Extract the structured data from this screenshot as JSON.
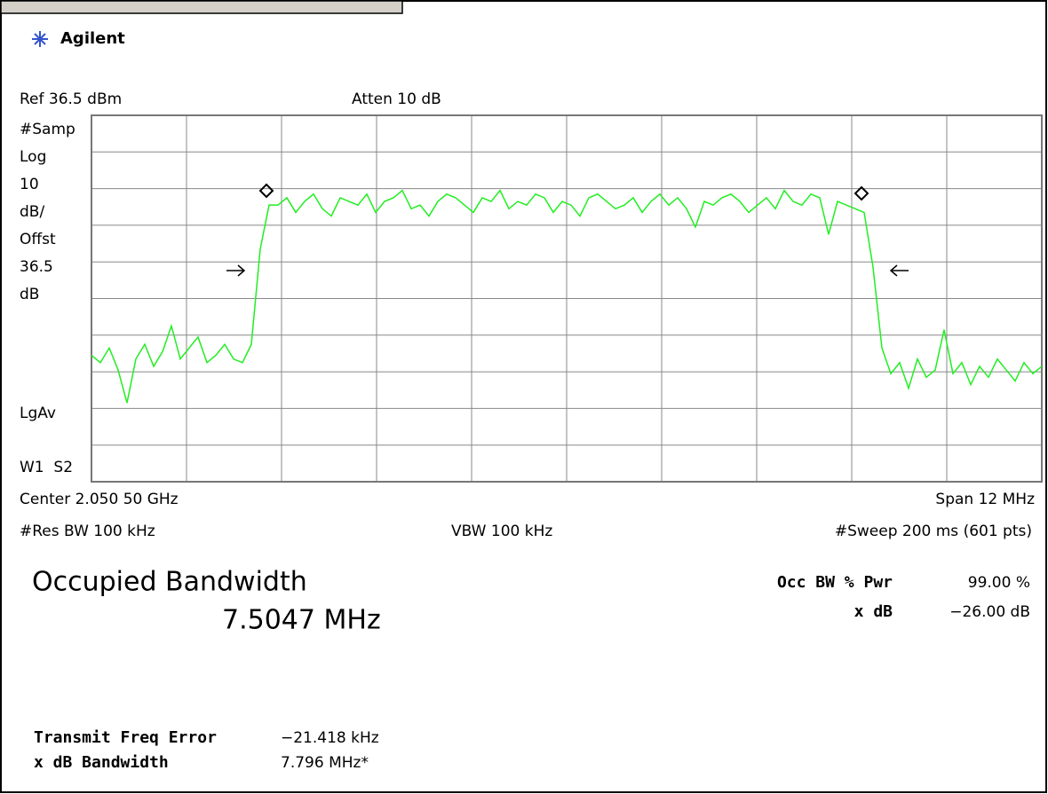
{
  "header": {
    "brand": "Agilent"
  },
  "settings": {
    "ref": "Ref 36.5 dBm",
    "atten": "Atten 10 dB",
    "side_labels": [
      "#Samp",
      "Log",
      "10",
      "dB/",
      "Offst",
      "36.5",
      "dB"
    ],
    "avg": "LgAv",
    "window": "W1  S2",
    "center": "Center 2.050 50 GHz",
    "span": "Span 12 MHz",
    "res_bw": "#Res BW 100 kHz",
    "vbw": "VBW 100 kHz",
    "sweep": "#Sweep 200 ms (601 pts)"
  },
  "trace": {
    "color": "#22ee22",
    "ylim": [
      -63.5,
      36.5
    ],
    "values": [
      -29,
      -31,
      -27,
      -33,
      -42,
      -30,
      -26,
      -32,
      -28,
      -21,
      -30,
      -27,
      -24,
      -31,
      -29,
      -26,
      -30,
      -31,
      -26,
      0,
      12,
      12,
      14,
      10,
      13,
      15,
      11,
      9,
      14,
      13,
      12,
      15,
      10,
      13,
      14,
      16,
      11,
      12,
      9,
      13,
      15,
      14,
      12,
      10,
      14,
      13,
      16,
      11,
      13,
      12,
      15,
      14,
      10,
      13,
      12,
      9,
      14,
      15,
      13,
      11,
      12,
      14,
      10,
      13,
      15,
      12,
      14,
      11,
      6,
      13,
      12,
      14,
      15,
      13,
      10,
      12,
      14,
      11,
      16,
      13,
      12,
      15,
      14,
      4,
      13,
      12,
      11,
      10,
      -5,
      -27,
      -34,
      -31,
      -38,
      -30,
      -35,
      -33,
      -22,
      -34,
      -31,
      -37,
      -32,
      -35,
      -30,
      -33,
      -36,
      -31,
      -34,
      -32
    ]
  },
  "results": {
    "title": "Occupied Bandwidth",
    "value": "7.5047 MHz",
    "params": [
      {
        "label": "Occ BW % Pwr",
        "value": "99.00 %"
      },
      {
        "label": "x dB",
        "value": "−26.00 dB"
      }
    ],
    "extra": [
      {
        "label": "Transmit Freq Error",
        "value": "−21.418 kHz"
      },
      {
        "label": "x dB Bandwidth",
        "value": "7.796 MHz*"
      }
    ]
  }
}
